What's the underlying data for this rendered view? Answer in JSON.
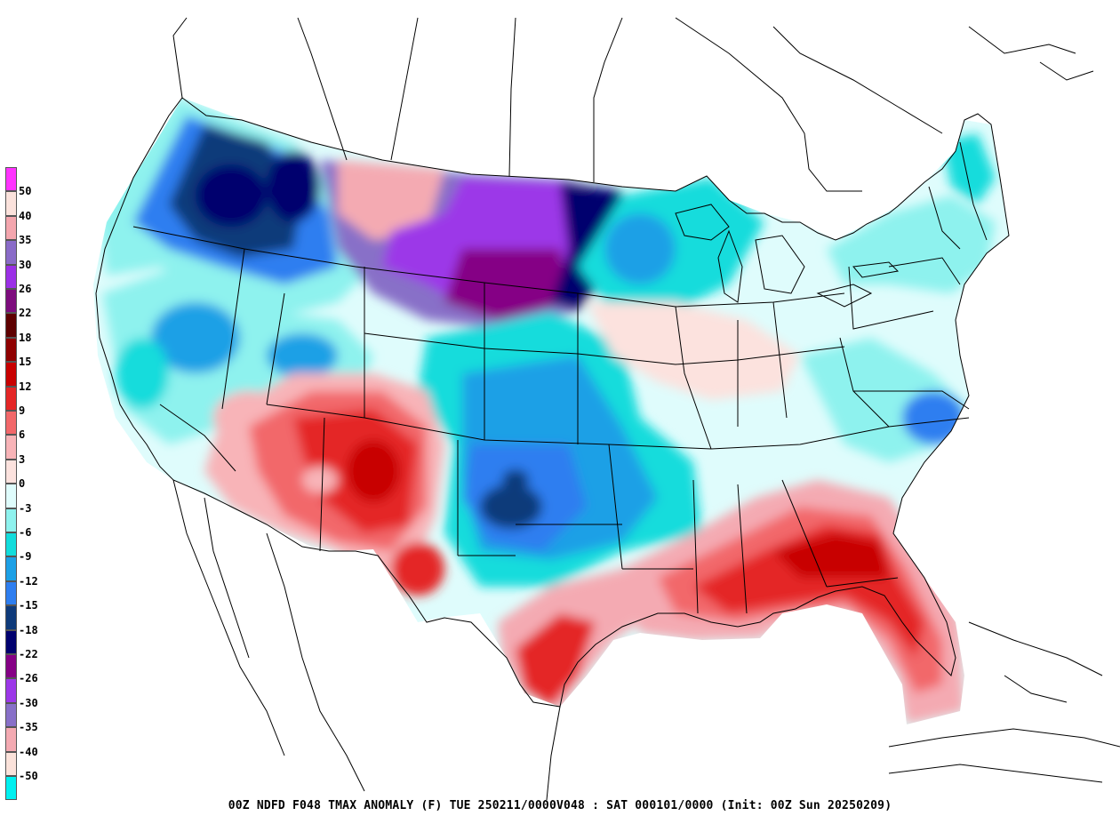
{
  "caption": "00Z NDFD F048 TMAX ANOMALY (F)  TUE 250211/0000V048 : SAT 000101/0000 (Init: 00Z Sun 20250209)",
  "legend": {
    "entries": [
      {
        "label": "50",
        "color": "#ff33ff"
      },
      {
        "label": "40",
        "color": "#fbe2dc"
      },
      {
        "label": "35",
        "color": "#f4a6ae"
      },
      {
        "label": "30",
        "color": "#8a6bc8"
      },
      {
        "label": "26",
        "color": "#9b30e6"
      },
      {
        "label": "22",
        "color": "#7d0c7d"
      },
      {
        "label": "18",
        "color": "#5e0000"
      },
      {
        "label": "15",
        "color": "#8f0000"
      },
      {
        "label": "12",
        "color": "#c80000"
      },
      {
        "label": "9",
        "color": "#e42626"
      },
      {
        "label": "6",
        "color": "#f2686a"
      },
      {
        "label": "3",
        "color": "#f8b4b8"
      },
      {
        "label": "0",
        "color": "#fce2de"
      },
      {
        "label": "-3",
        "color": "#dffcfc"
      },
      {
        "label": "-6",
        "color": "#8ef2ee"
      },
      {
        "label": "-9",
        "color": "#12dcdc"
      },
      {
        "label": "-12",
        "color": "#1ca0e6"
      },
      {
        "label": "-15",
        "color": "#2e7ef0"
      },
      {
        "label": "-18",
        "color": "#0e3a7a"
      },
      {
        "label": "-22",
        "color": "#00006e"
      },
      {
        "label": "-26",
        "color": "#850085"
      },
      {
        "label": "-30",
        "color": "#9c38e8"
      },
      {
        "label": "-35",
        "color": "#8870c8"
      },
      {
        "label": "-40",
        "color": "#f4aab2"
      },
      {
        "label": "-50",
        "color": "#fbe2da"
      }
    ],
    "bottom_color": "#00f0f0"
  },
  "colors": {
    "coast": "#000000",
    "background": "#ffffff"
  }
}
